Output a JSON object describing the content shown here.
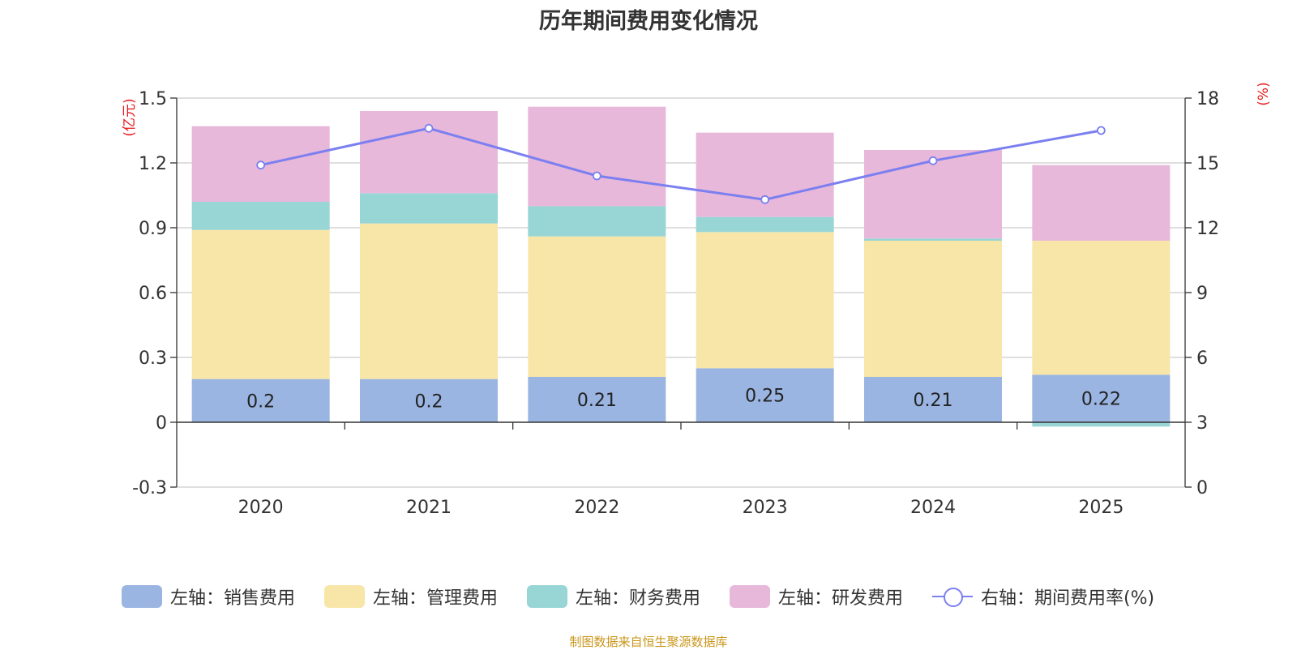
{
  "title": "历年期间费用变化情况",
  "source": "制图数据来自恒生聚源数据库",
  "chart_data": {
    "type": "bar",
    "stacked": true,
    "categories": [
      "2020",
      "2021",
      "2022",
      "2023",
      "2024",
      "2025"
    ],
    "left_axis": {
      "unit": "(亿元)",
      "ylim": [
        -0.3,
        1.5
      ],
      "ticks": [
        "-0.3",
        "0",
        "0.3",
        "0.6",
        "0.9",
        "1.2",
        "1.5"
      ]
    },
    "right_axis": {
      "unit": "(%)",
      "ylim": [
        0,
        18
      ],
      "ticks": [
        "0",
        "3",
        "6",
        "9",
        "12",
        "15",
        "18"
      ]
    },
    "series": [
      {
        "name": "左轴：销售费用",
        "axis": "left",
        "type": "bar",
        "color": "#9bb5e2",
        "values": [
          0.2,
          0.2,
          0.21,
          0.25,
          0.21,
          0.22
        ],
        "labels": [
          "0.2",
          "0.2",
          "0.21",
          "0.25",
          "0.21",
          "0.22"
        ]
      },
      {
        "name": "左轴：管理费用",
        "axis": "left",
        "type": "bar",
        "color": "#f7e6a8",
        "values": [
          0.69,
          0.72,
          0.65,
          0.63,
          0.63,
          0.62
        ]
      },
      {
        "name": "左轴：财务费用",
        "axis": "left",
        "type": "bar",
        "color": "#98d5d5",
        "values": [
          0.13,
          0.14,
          0.14,
          0.07,
          0.01,
          -0.02
        ]
      },
      {
        "name": "左轴：研发费用",
        "axis": "left",
        "type": "bar",
        "color": "#e8b8da",
        "values": [
          0.35,
          0.38,
          0.46,
          0.39,
          0.41,
          0.35
        ]
      },
      {
        "name": "右轴：期间费用率(%)",
        "axis": "right",
        "type": "line",
        "color": "#7b7ff0",
        "values": [
          14.9,
          16.6,
          14.4,
          13.3,
          15.1,
          16.5
        ]
      }
    ],
    "grid": true,
    "legend_position": "bottom"
  }
}
